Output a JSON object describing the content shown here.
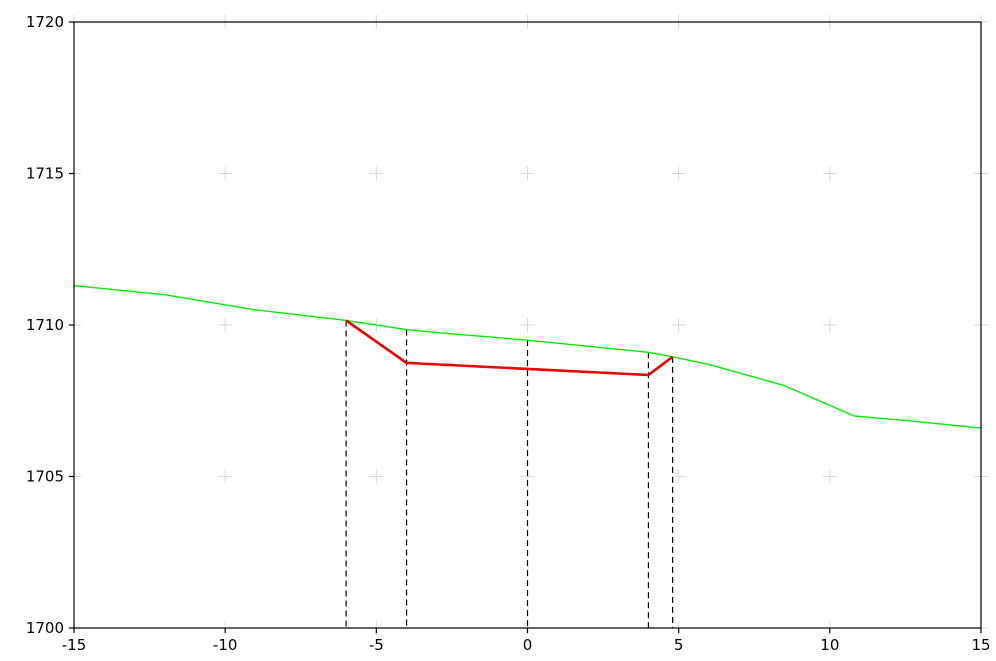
{
  "chart_data": {
    "type": "line",
    "title": "",
    "xlabel": "",
    "ylabel": "",
    "xlim": [
      -15,
      15
    ],
    "ylim": [
      1700,
      1720
    ],
    "x_ticks": [
      -15,
      -10,
      -5,
      0,
      5,
      10,
      15
    ],
    "y_ticks": [
      1700,
      1705,
      1710,
      1715,
      1720
    ],
    "x_tick_labels": [
      "-15",
      "-10",
      "-5",
      "0",
      "5",
      "10",
      "15"
    ],
    "y_tick_labels": [
      "1700",
      "1705",
      "1710",
      "1715",
      "1720"
    ],
    "grid": "plus markers",
    "series": [
      {
        "color": "#00ee00",
        "points": [
          [
            -15,
            1711.3
          ],
          [
            -12,
            1711.0
          ],
          [
            -9,
            1710.5
          ],
          [
            -6,
            1710.15
          ],
          [
            -4,
            1709.85
          ],
          [
            -3,
            1709.75
          ],
          [
            0,
            1709.5
          ],
          [
            4,
            1709.1
          ],
          [
            4.8,
            1708.95
          ],
          [
            6,
            1708.7
          ],
          [
            8.5,
            1708.0
          ],
          [
            10.8,
            1707.0
          ],
          [
            13,
            1706.8
          ],
          [
            15,
            1706.6
          ]
        ]
      },
      {
        "color": "#ee0000",
        "points": [
          [
            -6,
            1710.15
          ],
          [
            -4,
            1708.75
          ],
          [
            0,
            1708.55
          ],
          [
            4,
            1708.35
          ],
          [
            4.8,
            1708.95
          ]
        ]
      }
    ],
    "vertical_lines": [
      {
        "x": -6,
        "y_top": 1710.15
      },
      {
        "x": -4,
        "y_top": 1709.85
      },
      {
        "x": 0,
        "y_top": 1709.5
      },
      {
        "x": 4,
        "y_top": 1709.1
      },
      {
        "x": 4.8,
        "y_top": 1708.95
      }
    ]
  }
}
